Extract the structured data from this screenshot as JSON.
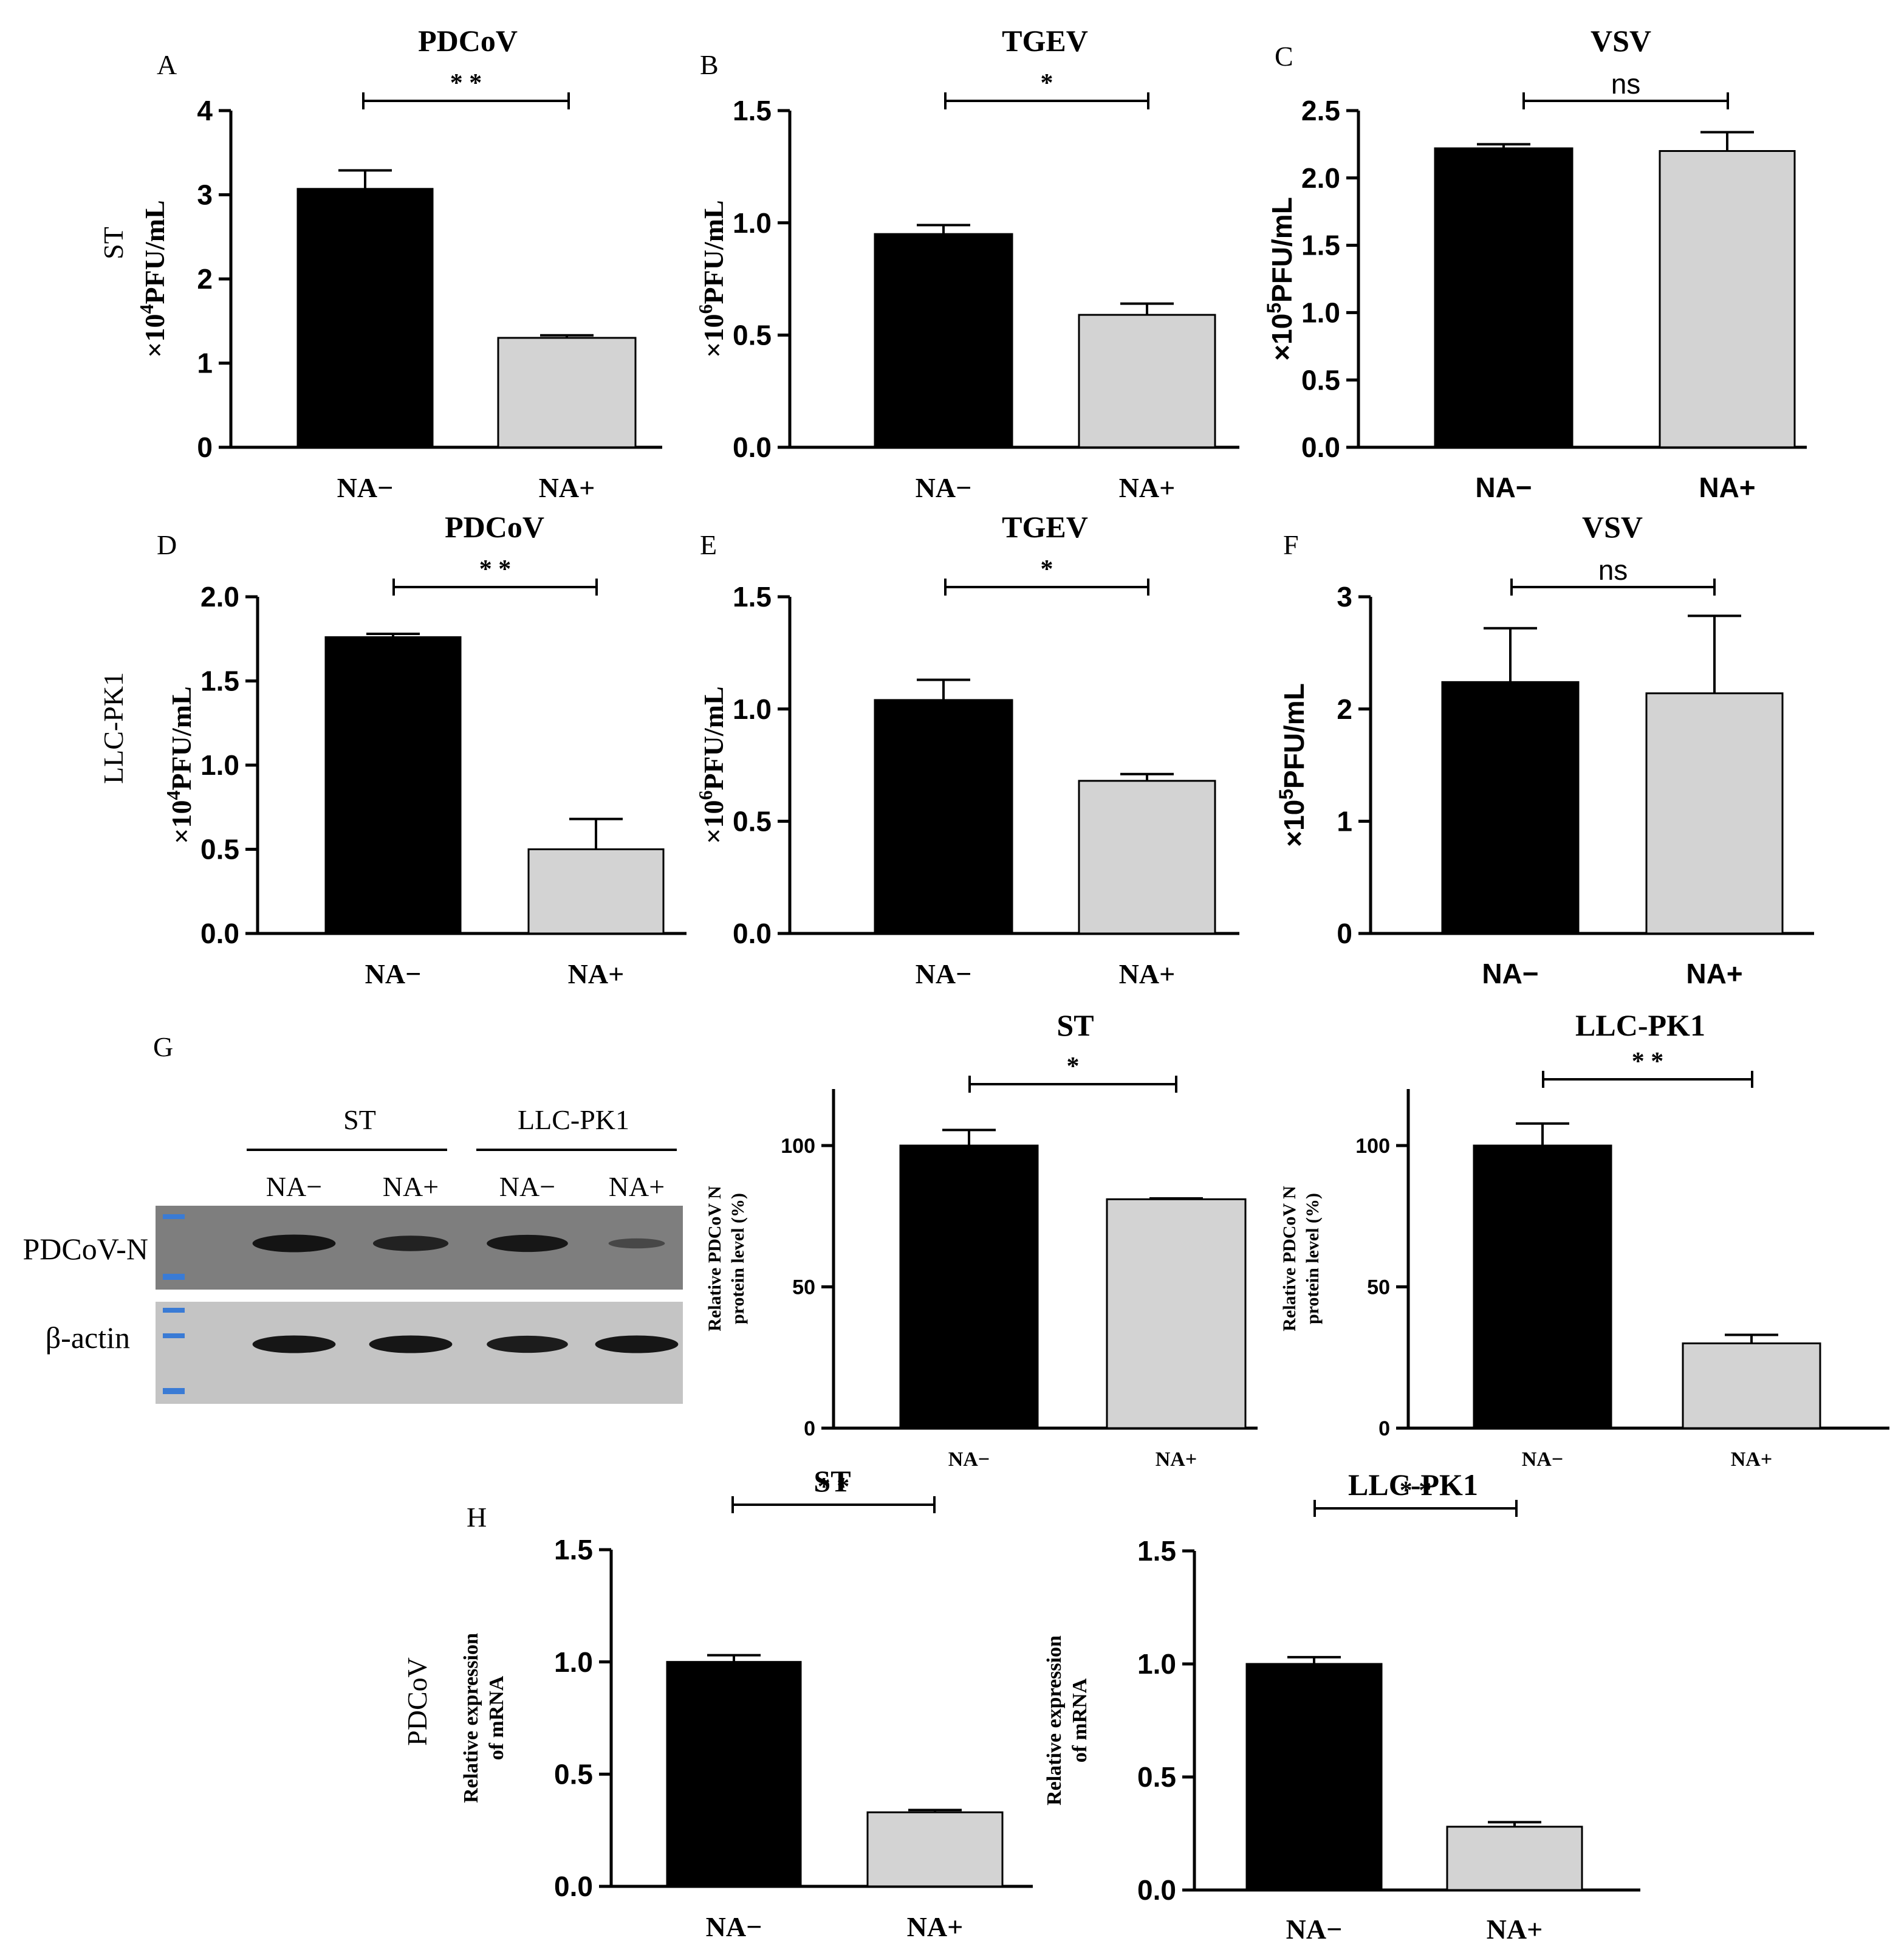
{
  "panel_letters": [
    "A",
    "B",
    "C",
    "D",
    "E",
    "F",
    "G",
    "H"
  ],
  "row_labels": {
    "row1": "ST",
    "row2": "LLC-PK1",
    "row4": "PDCoV"
  },
  "colors": {
    "na_minus": "#000000",
    "na_plus": "#d3d3d3",
    "axis": "#000000"
  },
  "western_blot": {
    "groups": [
      "ST",
      "LLC-PK1"
    ],
    "lanes": [
      "NA−",
      "NA+",
      "NA−",
      "NA+"
    ],
    "rows": [
      "PDCoV-N",
      "β-actin"
    ],
    "band_intensity": {
      "PDCoV-N": [
        0.95,
        0.75,
        0.9,
        0.25
      ],
      "β-actin": [
        0.95,
        0.95,
        0.9,
        0.95
      ]
    }
  },
  "chart_data": [
    {
      "id": "A",
      "type": "bar",
      "title": "PDCoV",
      "categories": [
        "NA−",
        "NA+"
      ],
      "values": [
        3.07,
        1.3
      ],
      "errors": [
        0.22,
        0.03
      ],
      "ylabel_prefix": "×10",
      "ylabel_exp": "4",
      "ylabel_suffix": "PFU/mL",
      "ylim": [
        0,
        4
      ],
      "ticks": [
        "0",
        "1",
        "2",
        "3",
        "4"
      ],
      "significance": "* *"
    },
    {
      "id": "B",
      "type": "bar",
      "title": "TGEV",
      "categories": [
        "NA−",
        "NA+"
      ],
      "values": [
        0.95,
        0.59
      ],
      "errors": [
        0.04,
        0.05
      ],
      "ylabel_prefix": "×10",
      "ylabel_exp": "6",
      "ylabel_suffix": "PFU/mL",
      "ylim": [
        0,
        1.5
      ],
      "ticks": [
        "0.0",
        "0.5",
        "1.0",
        "1.5"
      ],
      "significance": "*"
    },
    {
      "id": "C",
      "type": "bar",
      "title": "VSV",
      "categories": [
        "NA−",
        "NA+"
      ],
      "values": [
        2.22,
        2.2
      ],
      "errors": [
        0.03,
        0.14
      ],
      "ylabel_prefix": "×10",
      "ylabel_exp": "5",
      "ylabel_suffix": "PFU/mL",
      "ylim": [
        0,
        2.5
      ],
      "ticks": [
        "0.0",
        "0.5",
        "1.0",
        "1.5",
        "2.0",
        "2.5"
      ],
      "significance": "ns"
    },
    {
      "id": "D",
      "type": "bar",
      "title": "PDCoV",
      "categories": [
        "NA−",
        "NA+"
      ],
      "values": [
        1.76,
        0.5
      ],
      "errors": [
        0.02,
        0.18
      ],
      "ylabel_prefix": "×10",
      "ylabel_exp": "4",
      "ylabel_suffix": "PFU/mL",
      "ylim": [
        0,
        2.0
      ],
      "ticks": [
        "0.0",
        "0.5",
        "1.0",
        "1.5",
        "2.0"
      ],
      "significance": "* *"
    },
    {
      "id": "E",
      "type": "bar",
      "title": "TGEV",
      "categories": [
        "NA−",
        "NA+"
      ],
      "values": [
        1.04,
        0.68
      ],
      "errors": [
        0.09,
        0.03
      ],
      "ylabel_prefix": "×10",
      "ylabel_exp": "6",
      "ylabel_suffix": "PFU/mL",
      "ylim": [
        0,
        1.5
      ],
      "ticks": [
        "0.0",
        "0.5",
        "1.0",
        "1.5"
      ],
      "significance": "*"
    },
    {
      "id": "F",
      "type": "bar",
      "title": "VSV",
      "categories": [
        "NA−",
        "NA+"
      ],
      "values": [
        2.24,
        2.14
      ],
      "errors": [
        0.48,
        0.69
      ],
      "ylabel_prefix": "×10",
      "ylabel_exp": "5",
      "ylabel_suffix": "PFU/mL",
      "ylim": [
        0,
        3
      ],
      "ticks": [
        "0",
        "1",
        "2",
        "3"
      ],
      "significance": "ns"
    },
    {
      "id": "G1",
      "type": "bar",
      "title": "ST",
      "categories": [
        "NA−",
        "NA+"
      ],
      "values": [
        100,
        81
      ],
      "errors": [
        5.5,
        0.3
      ],
      "ylabel_line1": "Relative PDCoV N",
      "ylabel_line2": "protein level (%)",
      "ylim": [
        0,
        120
      ],
      "ticks": [
        "0",
        "50",
        "100"
      ],
      "significance": "*"
    },
    {
      "id": "G2",
      "type": "bar",
      "title": "LLC-PK1",
      "categories": [
        "NA−",
        "NA+"
      ],
      "values": [
        100,
        30
      ],
      "errors": [
        7.8,
        3.0
      ],
      "ylabel_line1": "Relative PDCoV N",
      "ylabel_line2": "protein level (%)",
      "ylim": [
        0,
        120
      ],
      "ticks": [
        "0",
        "50",
        "100"
      ],
      "significance": "* *"
    },
    {
      "id": "H1",
      "type": "bar",
      "title": "ST",
      "categories": [
        "NA−",
        "NA+"
      ],
      "values": [
        1.0,
        0.33
      ],
      "errors": [
        0.03,
        0.01
      ],
      "ylabel_line1": "Relative expression",
      "ylabel_line2": "of mRNA",
      "ylim": [
        0,
        1.5
      ],
      "ticks": [
        "0.0",
        "0.5",
        "1.0",
        "1.5"
      ],
      "significance": "* *"
    },
    {
      "id": "H2",
      "type": "bar",
      "title": "LLC-PK1",
      "categories": [
        "NA−",
        "NA+"
      ],
      "values": [
        1.0,
        0.28
      ],
      "errors": [
        0.03,
        0.02
      ],
      "ylabel_line1": "Relative expression",
      "ylabel_line2": "of mRNA",
      "ylim": [
        0,
        1.5
      ],
      "ticks": [
        "0.0",
        "0.5",
        "1.0",
        "1.5"
      ],
      "significance": "* *"
    }
  ]
}
